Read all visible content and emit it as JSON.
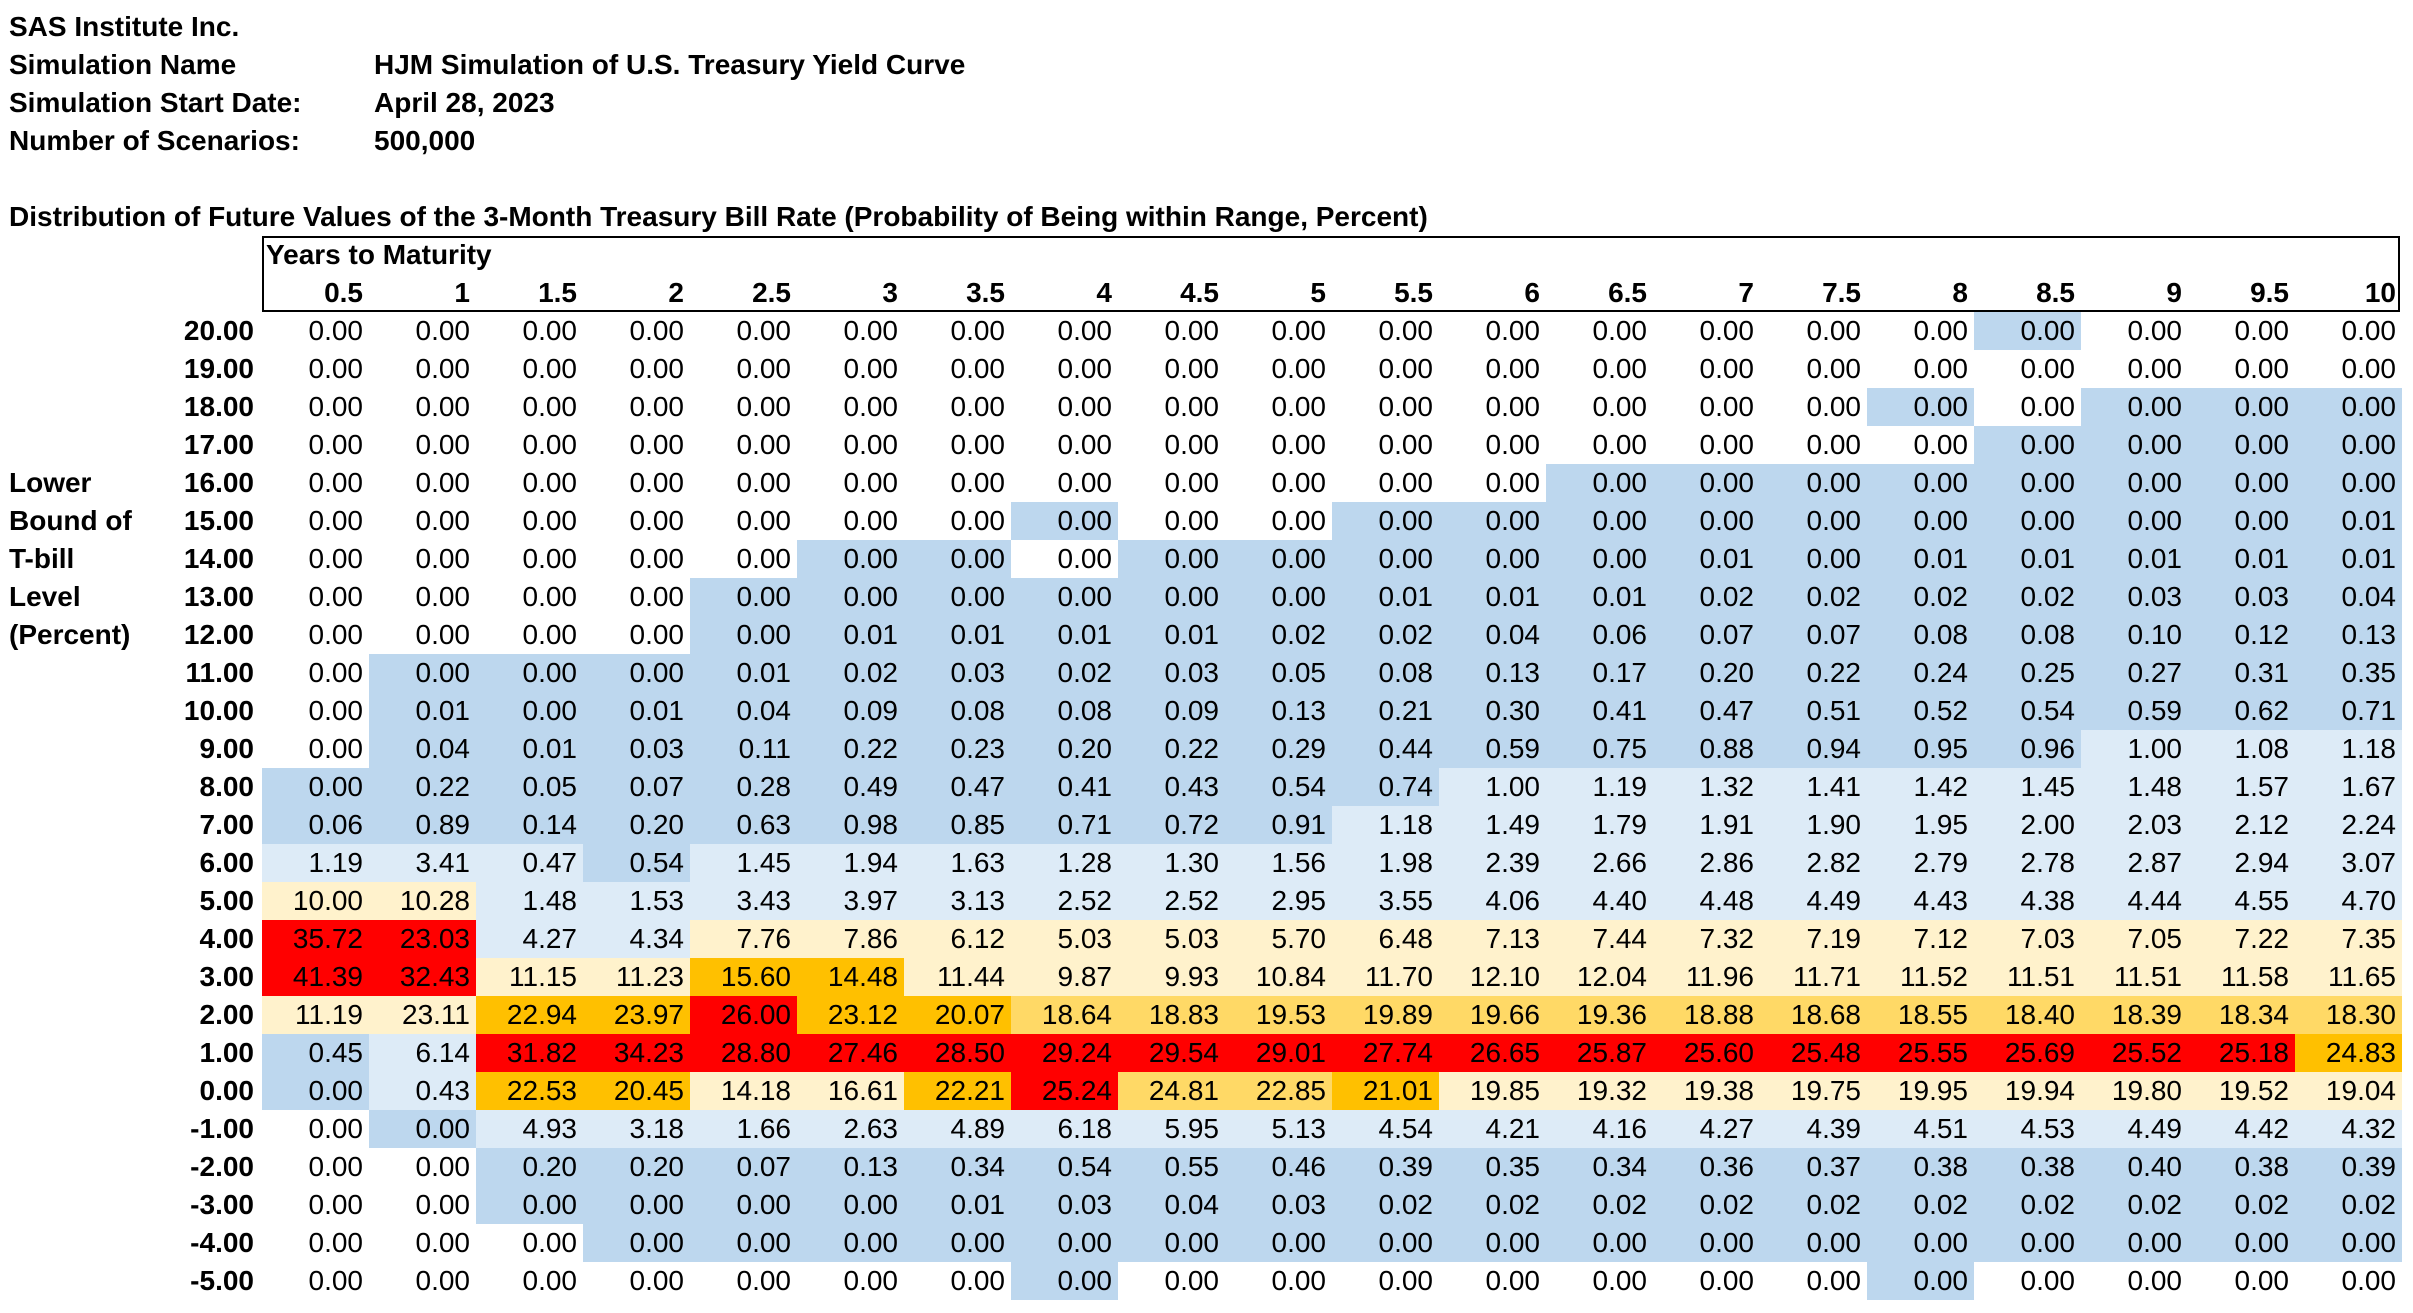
{
  "header": {
    "company": "SAS Institute Inc.",
    "simulation_name_label": "Simulation Name",
    "simulation_name": "HJM Simulation of U.S. Treasury Yield Curve",
    "start_date_label": "Simulation Start Date:",
    "start_date": "April 28, 2023",
    "scenarios_label": "Number of Scenarios:",
    "scenarios": "500,000"
  },
  "table_title": "Distribution of Future Values of the 3-Month Treasury Bill Rate (Probability of Being within Range, Percent)",
  "column_group_label": "Years to Maturity",
  "row_axis_label": [
    "Lower",
    "Bound of",
    "T-bill",
    "Level",
    "(Percent)"
  ],
  "columns": [
    "0.5",
    "1",
    "1.5",
    "2",
    "2.5",
    "3",
    "3.5",
    "4",
    "4.5",
    "5",
    "5.5",
    "6",
    "6.5",
    "7",
    "7.5",
    "8",
    "8.5",
    "9",
    "9.5",
    "10"
  ],
  "rows": [
    "20.00",
    "19.00",
    "18.00",
    "17.00",
    "16.00",
    "15.00",
    "14.00",
    "13.00",
    "12.00",
    "11.00",
    "10.00",
    "9.00",
    "8.00",
    "7.00",
    "6.00",
    "5.00",
    "4.00",
    "3.00",
    "2.00",
    "1.00",
    "0.00",
    "-1.00",
    "-2.00",
    "-3.00",
    "-4.00",
    "-5.00"
  ],
  "values": [
    [
      "0.00",
      "0.00",
      "0.00",
      "0.00",
      "0.00",
      "0.00",
      "0.00",
      "0.00",
      "0.00",
      "0.00",
      "0.00",
      "0.00",
      "0.00",
      "0.00",
      "0.00",
      "0.00",
      "0.00",
      "0.00",
      "0.00",
      "0.00"
    ],
    [
      "0.00",
      "0.00",
      "0.00",
      "0.00",
      "0.00",
      "0.00",
      "0.00",
      "0.00",
      "0.00",
      "0.00",
      "0.00",
      "0.00",
      "0.00",
      "0.00",
      "0.00",
      "0.00",
      "0.00",
      "0.00",
      "0.00",
      "0.00"
    ],
    [
      "0.00",
      "0.00",
      "0.00",
      "0.00",
      "0.00",
      "0.00",
      "0.00",
      "0.00",
      "0.00",
      "0.00",
      "0.00",
      "0.00",
      "0.00",
      "0.00",
      "0.00",
      "0.00",
      "0.00",
      "0.00",
      "0.00",
      "0.00"
    ],
    [
      "0.00",
      "0.00",
      "0.00",
      "0.00",
      "0.00",
      "0.00",
      "0.00",
      "0.00",
      "0.00",
      "0.00",
      "0.00",
      "0.00",
      "0.00",
      "0.00",
      "0.00",
      "0.00",
      "0.00",
      "0.00",
      "0.00",
      "0.00"
    ],
    [
      "0.00",
      "0.00",
      "0.00",
      "0.00",
      "0.00",
      "0.00",
      "0.00",
      "0.00",
      "0.00",
      "0.00",
      "0.00",
      "0.00",
      "0.00",
      "0.00",
      "0.00",
      "0.00",
      "0.00",
      "0.00",
      "0.00",
      "0.00"
    ],
    [
      "0.00",
      "0.00",
      "0.00",
      "0.00",
      "0.00",
      "0.00",
      "0.00",
      "0.00",
      "0.00",
      "0.00",
      "0.00",
      "0.00",
      "0.00",
      "0.00",
      "0.00",
      "0.00",
      "0.00",
      "0.00",
      "0.00",
      "0.01"
    ],
    [
      "0.00",
      "0.00",
      "0.00",
      "0.00",
      "0.00",
      "0.00",
      "0.00",
      "0.00",
      "0.00",
      "0.00",
      "0.00",
      "0.00",
      "0.00",
      "0.01",
      "0.00",
      "0.01",
      "0.01",
      "0.01",
      "0.01",
      "0.01"
    ],
    [
      "0.00",
      "0.00",
      "0.00",
      "0.00",
      "0.00",
      "0.00",
      "0.00",
      "0.00",
      "0.00",
      "0.00",
      "0.01",
      "0.01",
      "0.01",
      "0.02",
      "0.02",
      "0.02",
      "0.02",
      "0.03",
      "0.03",
      "0.04"
    ],
    [
      "0.00",
      "0.00",
      "0.00",
      "0.00",
      "0.00",
      "0.01",
      "0.01",
      "0.01",
      "0.01",
      "0.02",
      "0.02",
      "0.04",
      "0.06",
      "0.07",
      "0.07",
      "0.08",
      "0.08",
      "0.10",
      "0.12",
      "0.13"
    ],
    [
      "0.00",
      "0.00",
      "0.00",
      "0.00",
      "0.01",
      "0.02",
      "0.03",
      "0.02",
      "0.03",
      "0.05",
      "0.08",
      "0.13",
      "0.17",
      "0.20",
      "0.22",
      "0.24",
      "0.25",
      "0.27",
      "0.31",
      "0.35"
    ],
    [
      "0.00",
      "0.01",
      "0.00",
      "0.01",
      "0.04",
      "0.09",
      "0.08",
      "0.08",
      "0.09",
      "0.13",
      "0.21",
      "0.30",
      "0.41",
      "0.47",
      "0.51",
      "0.52",
      "0.54",
      "0.59",
      "0.62",
      "0.71"
    ],
    [
      "0.00",
      "0.04",
      "0.01",
      "0.03",
      "0.11",
      "0.22",
      "0.23",
      "0.20",
      "0.22",
      "0.29",
      "0.44",
      "0.59",
      "0.75",
      "0.88",
      "0.94",
      "0.95",
      "0.96",
      "1.00",
      "1.08",
      "1.18"
    ],
    [
      "0.00",
      "0.22",
      "0.05",
      "0.07",
      "0.28",
      "0.49",
      "0.47",
      "0.41",
      "0.43",
      "0.54",
      "0.74",
      "1.00",
      "1.19",
      "1.32",
      "1.41",
      "1.42",
      "1.45",
      "1.48",
      "1.57",
      "1.67"
    ],
    [
      "0.06",
      "0.89",
      "0.14",
      "0.20",
      "0.63",
      "0.98",
      "0.85",
      "0.71",
      "0.72",
      "0.91",
      "1.18",
      "1.49",
      "1.79",
      "1.91",
      "1.90",
      "1.95",
      "2.00",
      "2.03",
      "2.12",
      "2.24"
    ],
    [
      "1.19",
      "3.41",
      "0.47",
      "0.54",
      "1.45",
      "1.94",
      "1.63",
      "1.28",
      "1.30",
      "1.56",
      "1.98",
      "2.39",
      "2.66",
      "2.86",
      "2.82",
      "2.79",
      "2.78",
      "2.87",
      "2.94",
      "3.07"
    ],
    [
      "10.00",
      "10.28",
      "1.48",
      "1.53",
      "3.43",
      "3.97",
      "3.13",
      "2.52",
      "2.52",
      "2.95",
      "3.55",
      "4.06",
      "4.40",
      "4.48",
      "4.49",
      "4.43",
      "4.38",
      "4.44",
      "4.55",
      "4.70"
    ],
    [
      "35.72",
      "23.03",
      "4.27",
      "4.34",
      "7.76",
      "7.86",
      "6.12",
      "5.03",
      "5.03",
      "5.70",
      "6.48",
      "7.13",
      "7.44",
      "7.32",
      "7.19",
      "7.12",
      "7.03",
      "7.05",
      "7.22",
      "7.35"
    ],
    [
      "41.39",
      "32.43",
      "11.15",
      "11.23",
      "15.60",
      "14.48",
      "11.44",
      "9.87",
      "9.93",
      "10.84",
      "11.70",
      "12.10",
      "12.04",
      "11.96",
      "11.71",
      "11.52",
      "11.51",
      "11.51",
      "11.58",
      "11.65"
    ],
    [
      "11.19",
      "23.11",
      "22.94",
      "23.97",
      "26.00",
      "23.12",
      "20.07",
      "18.64",
      "18.83",
      "19.53",
      "19.89",
      "19.66",
      "19.36",
      "18.88",
      "18.68",
      "18.55",
      "18.40",
      "18.39",
      "18.34",
      "18.30"
    ],
    [
      "0.45",
      "6.14",
      "31.82",
      "34.23",
      "28.80",
      "27.46",
      "28.50",
      "29.24",
      "29.54",
      "29.01",
      "27.74",
      "26.65",
      "25.87",
      "25.60",
      "25.48",
      "25.55",
      "25.69",
      "25.52",
      "25.18",
      "24.83"
    ],
    [
      "0.00",
      "0.43",
      "22.53",
      "20.45",
      "14.18",
      "16.61",
      "22.21",
      "25.24",
      "24.81",
      "22.85",
      "21.01",
      "19.85",
      "19.32",
      "19.38",
      "19.75",
      "19.95",
      "19.94",
      "19.80",
      "19.52",
      "19.04"
    ],
    [
      "0.00",
      "0.00",
      "4.93",
      "3.18",
      "1.66",
      "2.63",
      "4.89",
      "6.18",
      "5.95",
      "5.13",
      "4.54",
      "4.21",
      "4.16",
      "4.27",
      "4.39",
      "4.51",
      "4.53",
      "4.49",
      "4.42",
      "4.32"
    ],
    [
      "0.00",
      "0.00",
      "0.20",
      "0.20",
      "0.07",
      "0.13",
      "0.34",
      "0.54",
      "0.55",
      "0.46",
      "0.39",
      "0.35",
      "0.34",
      "0.36",
      "0.37",
      "0.38",
      "0.38",
      "0.40",
      "0.38",
      "0.39"
    ],
    [
      "0.00",
      "0.00",
      "0.00",
      "0.00",
      "0.00",
      "0.00",
      "0.01",
      "0.03",
      "0.04",
      "0.03",
      "0.02",
      "0.02",
      "0.02",
      "0.02",
      "0.02",
      "0.02",
      "0.02",
      "0.02",
      "0.02",
      "0.02"
    ],
    [
      "0.00",
      "0.00",
      "0.00",
      "0.00",
      "0.00",
      "0.00",
      "0.00",
      "0.00",
      "0.00",
      "0.00",
      "0.00",
      "0.00",
      "0.00",
      "0.00",
      "0.00",
      "0.00",
      "0.00",
      "0.00",
      "0.00",
      "0.00"
    ],
    [
      "0.00",
      "0.00",
      "0.00",
      "0.00",
      "0.00",
      "0.00",
      "0.00",
      "0.00",
      "0.00",
      "0.00",
      "0.00",
      "0.00",
      "0.00",
      "0.00",
      "0.00",
      "0.00",
      "0.00",
      "0.00",
      "0.00",
      "0.00"
    ]
  ],
  "fills": [
    "WWWWWWWWWWWWWWWWBWWW",
    "WWWWWWWWWWWWWWWWWWWW",
    "WWWWWWWWWWWWWWWBWBBB",
    "WWWWWWWWWWWWWWWWBBBB",
    "WWWWWWWWWWWWBBBBBBBB",
    "WWWWWWWBWWBBBBBBBBBB",
    "WWWWWBBWBBBBBBBBBBBB",
    "WWWWBBBBBBBBBBBBBBBB",
    "WWWWBBBBBBBBBBBBBBBB",
    "WBBBBBBBBBBBBBBBBBBB",
    "WBBBBBBBBBBBBBBBBBBB",
    "WBBBBBBBBBBBBBBBBLLL",
    "BBBBBBBBBBBLLLLLLLLL",
    "BBBBBBBBBBLLLLLLLLLL",
    "LLLBLLLLLLLLLLLLLLLL",
    "YYLLLLLLLLLLLLLLLLLL",
    "RRLLYYYYYYYYYYYYYYYY",
    "RRYYOOYYYYYYYYYYYYYY",
    "YYOOROOGGGGGGGGGGGGG",
    "BLRRRRRRRRRRRRRRRRRO",
    "BLOOYYORGGOYYYYYYYYY",
    "WBLLLLLLLLLLLLLLLLLL",
    "WWBBBBBBBBBBBBBBBBBB",
    "WWBBBBBBBBBBBBBBBBBB",
    "WWWBBBBBBBBBBBBBBBBB",
    "WWWWWWWBWWWWWWWBWWWW"
  ],
  "fill_colors": {
    "W": "#ffffff",
    "B": "#bdd7ee",
    "L": "#ddebf7",
    "Y": "#fff2cc",
    "G": "#ffd966",
    "O": "#ffc000",
    "R": "#ff0000"
  }
}
